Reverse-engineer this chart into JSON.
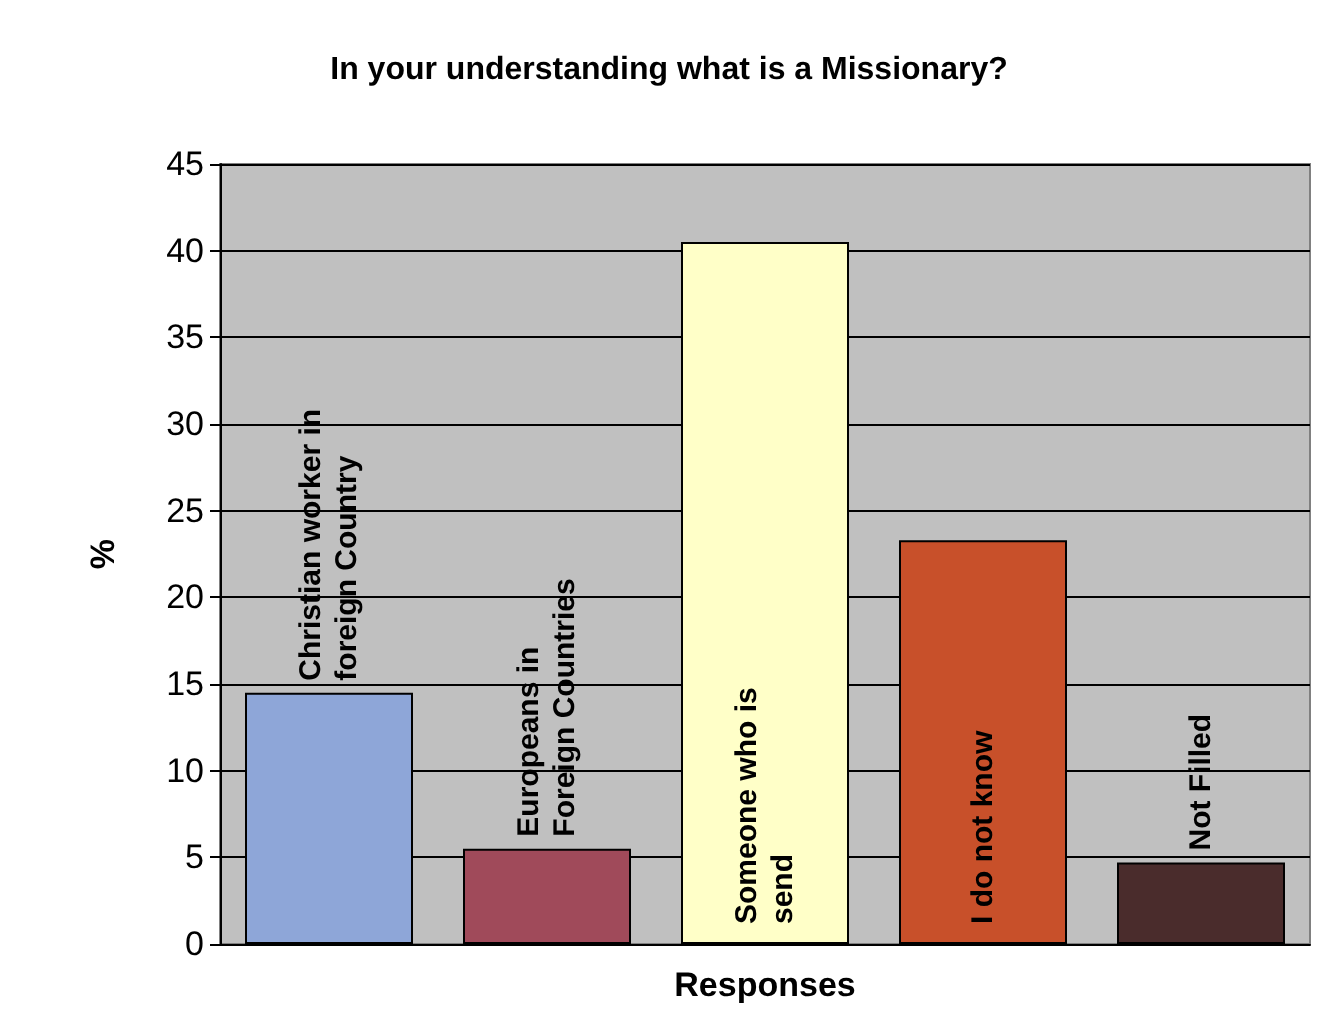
{
  "chart_data": {
    "type": "bar",
    "title": "In your understanding what is a Missionary?",
    "xlabel": "Responses",
    "ylabel": "%",
    "categories": [
      "Christian worker in foreign Country",
      "Europeans in Foreign Countries",
      "Someone who is send",
      "I do not know",
      "Not Filled"
    ],
    "values": [
      14.5,
      5.5,
      40.5,
      23.3,
      4.7
    ],
    "colors": [
      "#8ea6d8",
      "#a04a5a",
      "#ffffc8",
      "#c8502a",
      "#4a2c2c"
    ],
    "ylim": [
      0,
      45
    ],
    "yticks": [
      0,
      5,
      10,
      15,
      20,
      25,
      30,
      35,
      40,
      45
    ],
    "grid": "y"
  }
}
